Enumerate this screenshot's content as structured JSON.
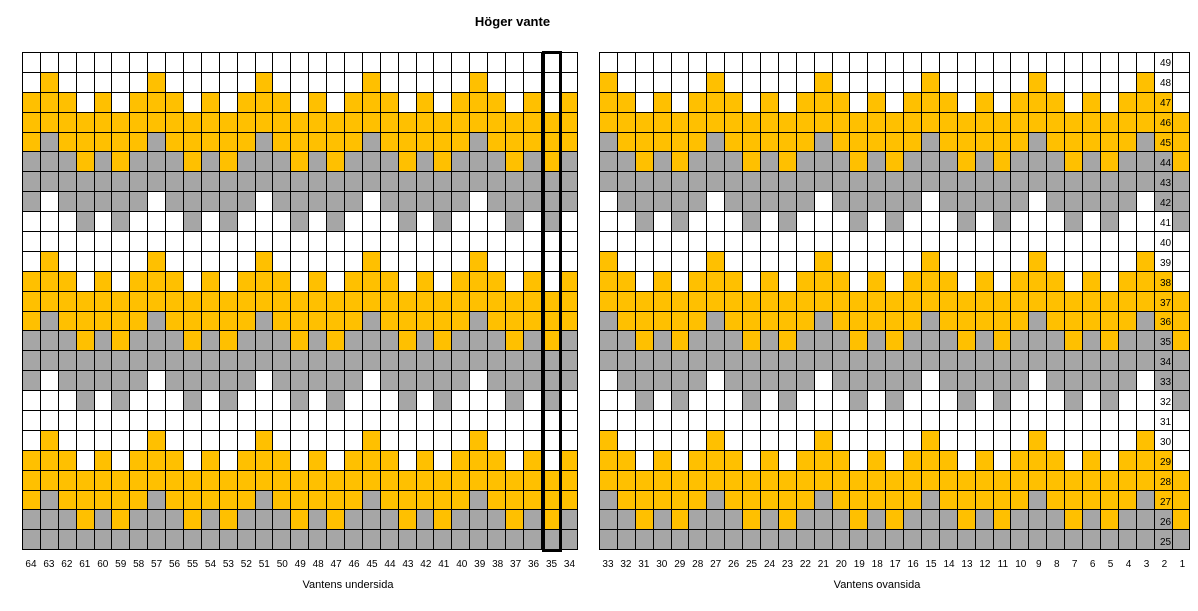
{
  "title": "Höger vante",
  "left_caption": "Vantens undersida",
  "right_caption": "Vantens ovansida",
  "left_columns": [
    64,
    63,
    62,
    61,
    60,
    59,
    58,
    57,
    56,
    55,
    54,
    53,
    52,
    51,
    50,
    49,
    48,
    47,
    46,
    45,
    44,
    43,
    42,
    41,
    40,
    39,
    38,
    37,
    36,
    35,
    34
  ],
  "right_columns": [
    33,
    32,
    31,
    30,
    29,
    28,
    27,
    26,
    25,
    24,
    23,
    22,
    21,
    20,
    19,
    18,
    17,
    16,
    15,
    14,
    13,
    12,
    11,
    10,
    9,
    8,
    7,
    6,
    5,
    4,
    3,
    2,
    1
  ],
  "rows": [
    49,
    48,
    47,
    46,
    45,
    44,
    43,
    42,
    41,
    40,
    39,
    38,
    37,
    36,
    35,
    34,
    33,
    32,
    31,
    30,
    29,
    28,
    27,
    26,
    25
  ],
  "highlighted_column": 35,
  "colors": {
    "white": "#ffffff",
    "yellow": "#ffc000",
    "gray": "#a6a6a6",
    "grid_line": "#000000"
  },
  "pattern_legend": {
    "W": "white",
    "Y": "yellow",
    "G": "gray"
  },
  "pattern_period": 6,
  "pattern_rows": {
    "49": "WWWWWW",
    "48": "WWWYWW",
    "47": "YWYYYW",
    "46": "YYYYYY",
    "45": "YYYGYY",
    "44": "GYGGGY",
    "43": "GGGGGG",
    "42": "GGGWGG",
    "41": "WGWWWG",
    "40": "WWWWWW",
    "39": "WWWYWW",
    "38": "YWYYYW",
    "37": "YYYYYY",
    "36": "YYYGYY",
    "35": "GYGGGY",
    "34": "GGGGGG",
    "33": "GGGWGG",
    "32": "WGWWWG",
    "31": "WWWWWW",
    "30": "WWWYWW",
    "29": "YWYYYW",
    "28": "YYYYYY",
    "27": "YYYGYY",
    "26": "GYGGGY",
    "25": "GGGGGG"
  }
}
